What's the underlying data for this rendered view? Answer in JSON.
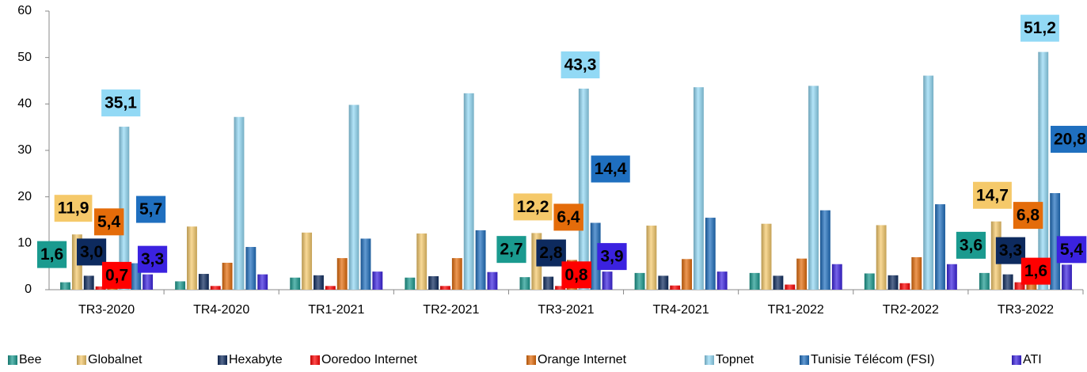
{
  "chart_data": {
    "type": "bar",
    "categories": [
      "TR3-2020",
      "TR4-2020",
      "TR1-2021",
      "TR2-2021",
      "TR3-2021",
      "TR4-2021",
      "TR1-2022",
      "TR2-2022",
      "TR3-2022"
    ],
    "ylim": [
      0,
      60
    ],
    "yticks": [
      0,
      10,
      20,
      30,
      40,
      50,
      60
    ],
    "series": [
      {
        "name": "Bee",
        "color": "#1a9a8f",
        "values": [
          1.6,
          1.8,
          2.6,
          2.6,
          2.7,
          3.6,
          3.6,
          3.5,
          3.6
        ],
        "value_labels": [
          "1,6",
          null,
          null,
          null,
          "2,7",
          null,
          null,
          null,
          "3,6"
        ]
      },
      {
        "name": "Globalnet",
        "color": "#f5c96a",
        "values": [
          11.9,
          13.6,
          12.3,
          12.1,
          12.2,
          13.8,
          14.2,
          13.9,
          14.7
        ],
        "value_labels": [
          "11,9",
          null,
          null,
          null,
          "12,2",
          null,
          null,
          null,
          "14,7"
        ]
      },
      {
        "name": "Hexabyte",
        "color": "#0d2a5e",
        "values": [
          3.0,
          3.4,
          3.1,
          2.9,
          2.8,
          3.0,
          3.0,
          3.1,
          3.3
        ],
        "value_labels": [
          "3,0",
          null,
          null,
          null,
          "2,8",
          null,
          null,
          null,
          "3,3"
        ]
      },
      {
        "name": "Ooredoo Internet",
        "color": "#ff0000",
        "values": [
          0.7,
          0.8,
          0.8,
          0.8,
          0.8,
          0.9,
          1.1,
          1.4,
          1.6
        ],
        "value_labels": [
          "0,7",
          null,
          null,
          null,
          "0,8",
          null,
          null,
          null,
          "1,6"
        ]
      },
      {
        "name": "Orange Internet",
        "color": "#e46c0a",
        "values": [
          5.4,
          5.8,
          6.8,
          6.8,
          6.4,
          6.6,
          6.7,
          7.0,
          6.8
        ],
        "value_labels": [
          "5,4",
          null,
          null,
          null,
          "6,4",
          null,
          null,
          null,
          "6,8"
        ]
      },
      {
        "name": "Topnet",
        "color": "#92d9f5",
        "values": [
          35.1,
          37.2,
          39.8,
          42.3,
          43.3,
          43.6,
          43.9,
          46.1,
          51.2
        ],
        "value_labels": [
          "35,1",
          null,
          null,
          null,
          "43,3",
          null,
          null,
          null,
          "51,2"
        ]
      },
      {
        "name": "Tunisie Télécom (FSI)",
        "color": "#1f6fbf",
        "values": [
          5.7,
          9.2,
          11.0,
          12.8,
          14.4,
          15.5,
          17.1,
          18.4,
          20.8
        ],
        "value_labels": [
          "5,7",
          null,
          null,
          null,
          "14,4",
          null,
          null,
          null,
          "20,8"
        ]
      },
      {
        "name": "ATI",
        "color": "#3b22e0",
        "values": [
          3.3,
          3.3,
          3.9,
          3.8,
          3.9,
          3.9,
          5.5,
          5.5,
          5.4
        ],
        "value_labels": [
          "3,3",
          null,
          null,
          null,
          "3,9",
          null,
          null,
          null,
          "5,4"
        ]
      }
    ]
  }
}
